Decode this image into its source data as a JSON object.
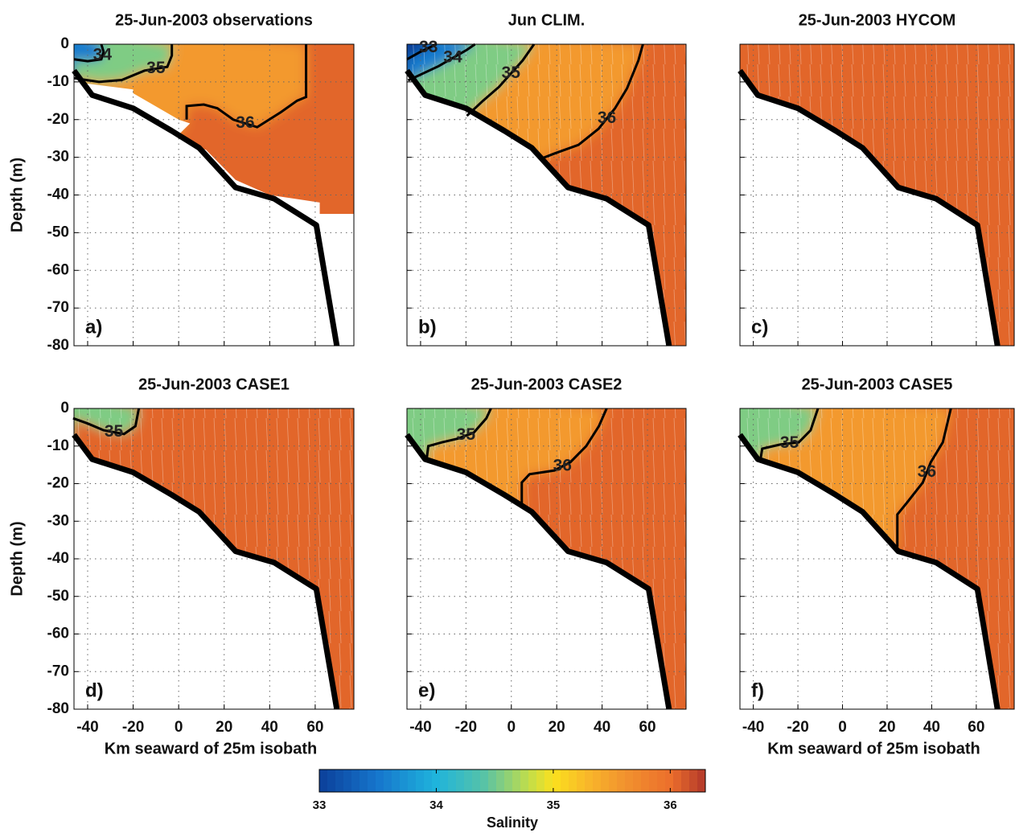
{
  "chart_data": [
    {
      "type": "contour",
      "title": "25-Jun-2003 observations",
      "panel_label": "a)",
      "ylabel": "Depth (m)",
      "show_xticklabels": false,
      "show_yticklabels": true,
      "xlim": [
        -46,
        77
      ],
      "ylim": [
        -80,
        0
      ],
      "xticks": [
        -40,
        -20,
        0,
        20,
        40,
        60
      ],
      "yticks": [
        0,
        -10,
        -20,
        -30,
        -40,
        -50,
        -60,
        -70,
        -80
      ],
      "grid": true,
      "bathymetry": {
        "x": [
          -46,
          -38,
          -20,
          -3,
          9,
          25,
          42,
          60.5,
          69.5
        ],
        "y": [
          -7,
          -13.5,
          -17,
          -23,
          -27.5,
          -38,
          -41,
          -48,
          -80
        ]
      },
      "contours": [
        {
          "level": 36,
          "x": [
            3.5,
            3.5,
            11,
            17,
            24,
            34.5,
            45,
            52,
            56,
            56
          ],
          "y": [
            -20,
            -16.4,
            -16,
            -17,
            -20,
            -22,
            -18,
            -15,
            -14,
            0
          ]
        },
        {
          "level": 35,
          "x": [
            -46,
            -35,
            -25,
            -15,
            -5,
            -3,
            -3
          ],
          "y": [
            -9,
            -10,
            -9.5,
            -7,
            -6,
            -3,
            0
          ]
        },
        {
          "level": 34,
          "x": [
            -46,
            -40,
            -34,
            -33,
            -34
          ],
          "y": [
            -4,
            -4.5,
            -4,
            -2,
            0
          ]
        }
      ]
    },
    {
      "type": "contour",
      "title": "Jun CLIM.",
      "panel_label": "b)",
      "show_xticklabels": false,
      "show_yticklabels": false,
      "xlim": [
        -46,
        77
      ],
      "ylim": [
        -80,
        0
      ],
      "xticks": [
        -40,
        -20,
        0,
        20,
        40,
        60
      ],
      "yticks": [
        0,
        -10,
        -20,
        -30,
        -40,
        -50,
        -60,
        -70,
        -80
      ],
      "grid": true,
      "bathymetry": {
        "x": [
          -46,
          -38,
          -20,
          -3,
          9,
          25,
          42,
          60.5,
          69.5
        ],
        "y": [
          -7,
          -13.5,
          -17,
          -23,
          -27.5,
          -38,
          -41,
          -48,
          -80
        ]
      },
      "contours": [
        {
          "level": 36,
          "x": [
            12.5,
            19,
            29.6,
            38.5,
            45.7,
            51,
            56,
            58
          ],
          "y": [
            -30.5,
            -29,
            -26.7,
            -22.4,
            -17,
            -11.7,
            -4.3,
            0
          ]
        },
        {
          "level": 35,
          "x": [
            -19.6,
            -12.5,
            -5.4,
            5,
            10
          ],
          "y": [
            -19,
            -15,
            -11.3,
            -4.3,
            0
          ]
        },
        {
          "level": 34,
          "x": [
            -45.5,
            -32,
            -19.6,
            -16
          ],
          "y": [
            -9.6,
            -5.8,
            -1.5,
            0
          ]
        },
        {
          "level": 33,
          "x": [
            -46,
            -40,
            -33
          ],
          "y": [
            -4,
            -2,
            0
          ]
        }
      ]
    },
    {
      "type": "contour",
      "title": "25-Jun-2003 HYCOM",
      "panel_label": "c)",
      "show_xticklabels": false,
      "show_yticklabels": false,
      "xlim": [
        -46,
        77
      ],
      "ylim": [
        -80,
        0
      ],
      "xticks": [
        -40,
        -20,
        0,
        20,
        40,
        60
      ],
      "yticks": [
        0,
        -10,
        -20,
        -30,
        -40,
        -50,
        -60,
        -70,
        -80
      ],
      "grid": true,
      "bathymetry": {
        "x": [
          -46,
          -38,
          -20,
          -3,
          9,
          25,
          42,
          60.5,
          69.5
        ],
        "y": [
          -7,
          -13.5,
          -17,
          -23,
          -27.5,
          -38,
          -41,
          -48,
          -80
        ]
      },
      "contours": []
    },
    {
      "type": "contour",
      "title": "25-Jun-2003 CASE1",
      "panel_label": "d)",
      "ylabel": "Depth (m)",
      "xlabel": "Km seaward of 25m isobath",
      "show_xticklabels": true,
      "show_yticklabels": true,
      "xlim": [
        -46,
        77
      ],
      "ylim": [
        -80,
        0
      ],
      "xticks": [
        -40,
        -20,
        0,
        20,
        40,
        60
      ],
      "yticks": [
        0,
        -10,
        -20,
        -30,
        -40,
        -50,
        -60,
        -70,
        -80
      ],
      "grid": true,
      "bathymetry": {
        "x": [
          -46,
          -38,
          -20,
          -3,
          9,
          25,
          42,
          60.5,
          69.5
        ],
        "y": [
          -7,
          -13.5,
          -17,
          -23,
          -27.5,
          -38,
          -41,
          -48,
          -80
        ]
      },
      "contours": [
        {
          "level": 35,
          "x": [
            -46.4,
            -40,
            -33,
            -24,
            -19,
            -17.5
          ],
          "y": [
            -2.6,
            -4,
            -5.8,
            -6.8,
            -4.7,
            0
          ]
        }
      ]
    },
    {
      "type": "contour",
      "title": "25-Jun-2003 CASE2",
      "panel_label": "e)",
      "show_xticklabels": true,
      "show_yticklabels": false,
      "xlim": [
        -46,
        77
      ],
      "ylim": [
        -80,
        0
      ],
      "xticks": [
        -40,
        -20,
        0,
        20,
        40,
        60
      ],
      "yticks": [
        0,
        -10,
        -20,
        -30,
        -40,
        -50,
        -60,
        -70,
        -80
      ],
      "grid": true,
      "bathymetry": {
        "x": [
          -46,
          -38,
          -20,
          -3,
          9,
          25,
          42,
          60.5,
          69.5
        ],
        "y": [
          -7,
          -13.5,
          -17,
          -23,
          -27.5,
          -38,
          -41,
          -48,
          -80
        ]
      },
      "contours": [
        {
          "level": 36,
          "x": [
            4.6,
            4.6,
            8,
            19,
            26,
            33,
            38.6,
            42
          ],
          "y": [
            -26,
            -19.7,
            -17.5,
            -16.5,
            -14.3,
            -10,
            -4.7,
            0
          ]
        },
        {
          "level": 35,
          "x": [
            -37.5,
            -36.6,
            -30.5,
            -23.5,
            -16.5,
            -11,
            -9
          ],
          "y": [
            -14.3,
            -10,
            -9,
            -8,
            -6.4,
            -2.6,
            0
          ]
        }
      ]
    },
    {
      "type": "contour",
      "title": "25-Jun-2003 CASE5",
      "panel_label": "f)",
      "xlabel": "Km seaward of 25m isobath",
      "show_xticklabels": true,
      "show_yticklabels": false,
      "xlim": [
        -46,
        77
      ],
      "ylim": [
        -80,
        0
      ],
      "xticks": [
        -40,
        -20,
        0,
        20,
        40,
        60
      ],
      "yticks": [
        0,
        -10,
        -20,
        -30,
        -40,
        -50,
        -60,
        -70,
        -80
      ],
      "grid": true,
      "bathymetry": {
        "x": [
          -46,
          -38,
          -20,
          -3,
          9,
          25,
          42,
          60.5,
          69.5
        ],
        "y": [
          -7,
          -13.5,
          -17,
          -23,
          -27.5,
          -38,
          -41,
          -48,
          -80
        ]
      },
      "contours": [
        {
          "level": 36,
          "x": [
            24.6,
            24.6,
            29,
            36,
            39.6,
            45,
            48.6
          ],
          "y": [
            -36.8,
            -28.2,
            -25,
            -19.7,
            -14.3,
            -9,
            0
          ]
        },
        {
          "level": 35,
          "x": [
            -37,
            -36,
            -28,
            -19.6,
            -14.3,
            -11
          ],
          "y": [
            -14.3,
            -10.7,
            -9.6,
            -9,
            -5.8,
            0
          ]
        }
      ]
    }
  ],
  "colorbar": {
    "label": "Salinity",
    "lim": [
      33,
      36.3
    ],
    "ticks": [
      33,
      34,
      35,
      36
    ]
  }
}
